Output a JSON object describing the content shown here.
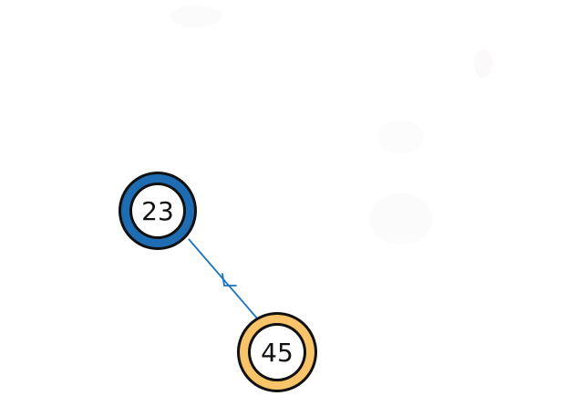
{
  "diagram": {
    "nodes": [
      {
        "id": "n23",
        "label": "23",
        "ring_color": "#1e6db3",
        "fill_color": "#ffffff",
        "outline_color": "#111111"
      },
      {
        "id": "n45",
        "label": "45",
        "ring_color": "#f7c46a",
        "fill_color": "#ffffff",
        "outline_color": "#111111"
      }
    ],
    "edges": [
      {
        "from": "n45",
        "to": "n23",
        "color": "#1a75c0",
        "arrow": "to"
      }
    ]
  }
}
